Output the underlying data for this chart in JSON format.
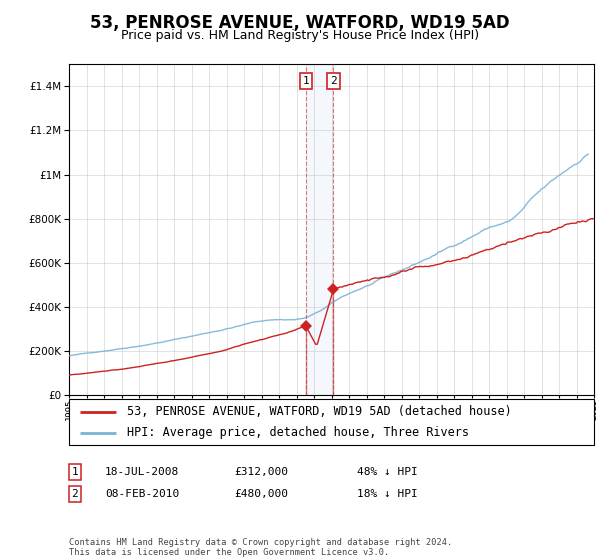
{
  "title": "53, PENROSE AVENUE, WATFORD, WD19 5AD",
  "subtitle": "Price paid vs. HM Land Registry's House Price Index (HPI)",
  "legend_line1": "53, PENROSE AVENUE, WATFORD, WD19 5AD (detached house)",
  "legend_line2": "HPI: Average price, detached house, Three Rivers",
  "transaction1_date": "18-JUL-2008",
  "transaction1_price": "£312,000",
  "transaction1_hpi": "48% ↓ HPI",
  "transaction1_year": 2008.54,
  "transaction1_value": 312000,
  "transaction2_date": "08-FEB-2010",
  "transaction2_price": "£480,000",
  "transaction2_hpi": "18% ↓ HPI",
  "transaction2_year": 2010.11,
  "transaction2_value": 480000,
  "hpi_color": "#7ab3d4",
  "property_color": "#cc2222",
  "grid_color": "#cccccc",
  "ylim": [
    0,
    1500000
  ],
  "xlim_start": 1995,
  "xlim_end": 2025,
  "footnote": "Contains HM Land Registry data © Crown copyright and database right 2024.\nThis data is licensed under the Open Government Licence v3.0.",
  "title_fontsize": 12,
  "subtitle_fontsize": 9,
  "legend_fontsize": 8.5,
  "table_fontsize": 8
}
